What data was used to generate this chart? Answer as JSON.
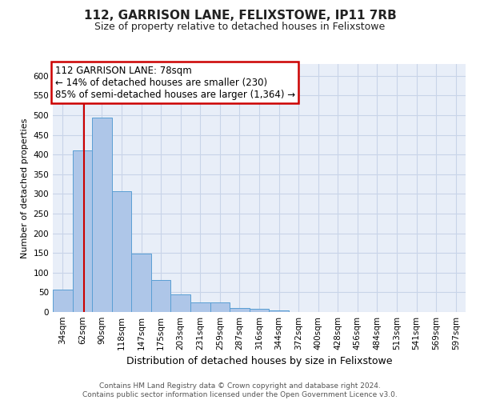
{
  "title1": "112, GARRISON LANE, FELIXSTOWE, IP11 7RB",
  "title2": "Size of property relative to detached houses in Felixstowe",
  "xlabel": "Distribution of detached houses by size in Felixstowe",
  "ylabel": "Number of detached properties",
  "annotation_line1": "112 GARRISON LANE: 78sqm",
  "annotation_line2": "← 14% of detached houses are smaller (230)",
  "annotation_line3": "85% of semi-detached houses are larger (1,364) →",
  "footer1": "Contains HM Land Registry data © Crown copyright and database right 2024.",
  "footer2": "Contains public sector information licensed under the Open Government Licence v3.0.",
  "bin_labels": [
    "34sqm",
    "62sqm",
    "90sqm",
    "118sqm",
    "147sqm",
    "175sqm",
    "203sqm",
    "231sqm",
    "259sqm",
    "287sqm",
    "316sqm",
    "344sqm",
    "372sqm",
    "400sqm",
    "428sqm",
    "456sqm",
    "484sqm",
    "513sqm",
    "541sqm",
    "569sqm",
    "597sqm"
  ],
  "bar_values": [
    57,
    411,
    493,
    307,
    148,
    81,
    44,
    24,
    25,
    10,
    9,
    5,
    1,
    0,
    0,
    0,
    0,
    0,
    0,
    0,
    1
  ],
  "bar_color": "#aec6e8",
  "bar_edge_color": "#5a9fd4",
  "red_line_color": "#cc0000",
  "annotation_box_color": "#ffffff",
  "annotation_box_edge": "#cc0000",
  "grid_color": "#c8d4e8",
  "bg_color": "#e8eef8",
  "ylim": [
    0,
    630
  ],
  "yticks": [
    0,
    50,
    100,
    150,
    200,
    250,
    300,
    350,
    400,
    450,
    500,
    550,
    600
  ],
  "title1_fontsize": 11,
  "title2_fontsize": 9,
  "xlabel_fontsize": 9,
  "ylabel_fontsize": 8,
  "tick_fontsize": 7.5,
  "footer_fontsize": 6.5,
  "annot_fontsize": 8.5
}
